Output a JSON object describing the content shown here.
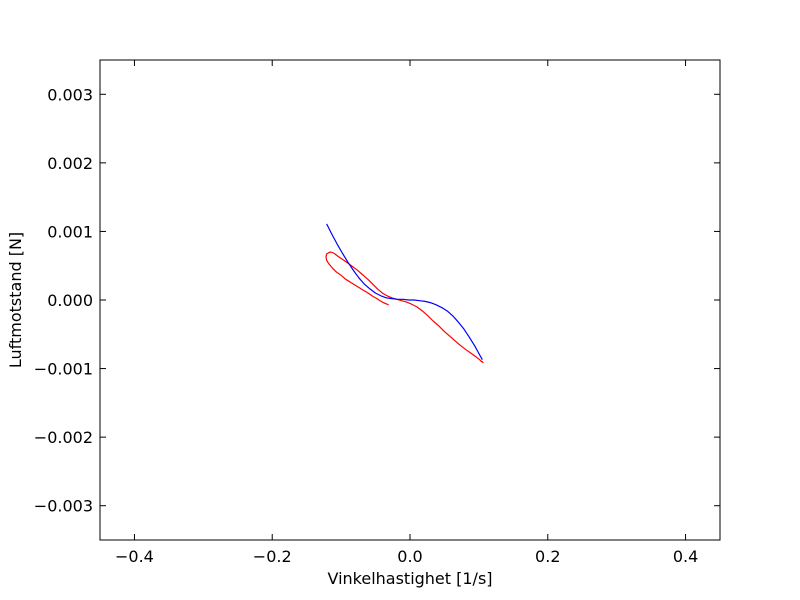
{
  "chart_data": {
    "type": "line",
    "title": "",
    "xlabel": "Vinkelhastighet [1/s]",
    "ylabel": "Luftmotstand [N]",
    "xlim": [
      -0.45,
      0.45
    ],
    "ylim": [
      -0.0035,
      0.0035
    ],
    "xticks": [
      -0.4,
      -0.2,
      0.0,
      0.2,
      0.4
    ],
    "xtick_labels": [
      "−0.4",
      "−0.2",
      "0.0",
      "0.2",
      "0.4"
    ],
    "yticks": [
      0.003,
      0.002,
      0.001,
      0.0,
      -0.001,
      -0.002,
      -0.003
    ],
    "ytick_labels": [
      "0.003",
      "0.002",
      "0.001",
      "0.000",
      "−0.001",
      "−0.002",
      "−0.003"
    ],
    "grid": false,
    "series": [
      {
        "color": "#ff0000",
        "points": [
          [
            -0.031,
            -7e-05
          ],
          [
            -0.036,
            -5e-05
          ],
          [
            -0.042,
            -2e-05
          ],
          [
            -0.048,
            2e-05
          ],
          [
            -0.055,
            6e-05
          ],
          [
            -0.062,
            0.00011
          ],
          [
            -0.069,
            0.00015
          ],
          [
            -0.077,
            0.0002
          ],
          [
            -0.085,
            0.00025
          ],
          [
            -0.093,
            0.0003
          ],
          [
            -0.1,
            0.00036
          ],
          [
            -0.107,
            0.00041
          ],
          [
            -0.113,
            0.00047
          ],
          [
            -0.118,
            0.00053
          ],
          [
            -0.121,
            0.00058
          ],
          [
            -0.122,
            0.00063
          ],
          [
            -0.121,
            0.00067
          ],
          [
            -0.118,
            0.00069
          ],
          [
            -0.115,
            0.0007
          ],
          [
            -0.11,
            0.00068
          ],
          [
            -0.105,
            0.00064
          ],
          [
            -0.099,
            0.0006
          ],
          [
            -0.092,
            0.00055
          ],
          [
            -0.085,
            0.0005
          ],
          [
            -0.077,
            0.00044
          ],
          [
            -0.069,
            0.00037
          ],
          [
            -0.061,
            0.0003
          ],
          [
            -0.054,
            0.00023
          ],
          [
            -0.047,
            0.00016
          ],
          [
            -0.04,
            0.0001
          ],
          [
            -0.033,
            6e-05
          ],
          [
            -0.026,
            3e-05
          ],
          [
            -0.019,
            1e-05
          ],
          [
            -0.012,
            -1e-05
          ],
          [
            -0.005,
            -3e-05
          ],
          [
            0.002,
            -6e-05
          ],
          [
            0.01,
            -0.0001
          ],
          [
            0.018,
            -0.00016
          ],
          [
            0.026,
            -0.00023
          ],
          [
            0.034,
            -0.00031
          ],
          [
            0.042,
            -0.00038
          ],
          [
            0.05,
            -0.00046
          ],
          [
            0.058,
            -0.00053
          ],
          [
            0.066,
            -0.0006
          ],
          [
            0.074,
            -0.00067
          ],
          [
            0.082,
            -0.00073
          ],
          [
            0.089,
            -0.00078
          ],
          [
            0.096,
            -0.00083
          ],
          [
            0.101,
            -0.00087
          ],
          [
            0.104,
            -0.0009
          ],
          [
            0.106,
            -0.00091
          ],
          [
            0.104,
            -0.00089
          ]
        ]
      },
      {
        "color": "#0000ff",
        "points": [
          [
            -0.121,
            0.00111
          ],
          [
            -0.114,
            0.00097
          ],
          [
            -0.106,
            0.00082
          ],
          [
            -0.098,
            0.00068
          ],
          [
            -0.09,
            0.00055
          ],
          [
            -0.082,
            0.00043
          ],
          [
            -0.074,
            0.00032
          ],
          [
            -0.066,
            0.00023
          ],
          [
            -0.058,
            0.00016
          ],
          [
            -0.05,
            0.0001
          ],
          [
            -0.042,
            6e-05
          ],
          [
            -0.034,
            3e-05
          ],
          [
            -0.026,
            2e-05
          ],
          [
            -0.018,
            1e-05
          ],
          [
            -0.01,
            1e-05
          ],
          [
            -0.002,
            0.0
          ],
          [
            0.006,
            0.0
          ],
          [
            0.014,
            -1e-05
          ],
          [
            0.022,
            -2e-05
          ],
          [
            0.03,
            -4e-05
          ],
          [
            0.038,
            -7e-05
          ],
          [
            0.046,
            -0.00011
          ],
          [
            0.054,
            -0.00016
          ],
          [
            0.062,
            -0.00023
          ],
          [
            0.07,
            -0.00032
          ],
          [
            0.078,
            -0.00042
          ],
          [
            0.086,
            -0.00054
          ],
          [
            0.094,
            -0.00067
          ],
          [
            0.1,
            -0.00078
          ],
          [
            0.105,
            -0.00087
          ]
        ]
      }
    ]
  }
}
